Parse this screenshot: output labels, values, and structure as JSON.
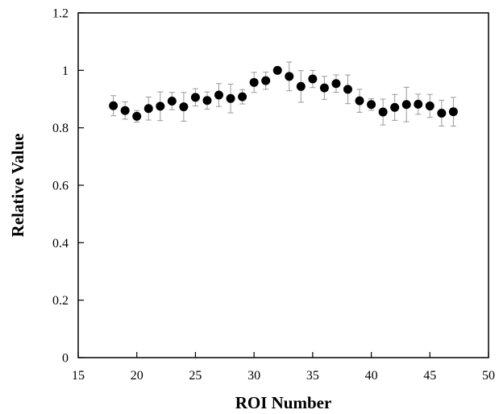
{
  "chart_data": {
    "type": "scatter",
    "title": "",
    "xlabel": "ROI Number",
    "ylabel": "Relative Value",
    "xlim": [
      15,
      50
    ],
    "ylim": [
      0,
      1.2
    ],
    "x_ticks": [
      15,
      20,
      25,
      30,
      35,
      40,
      45,
      50
    ],
    "y_ticks": [
      0,
      0.2,
      0.4,
      0.6,
      0.8,
      1,
      1.2
    ],
    "x_tick_labels": [
      "15",
      "20",
      "25",
      "30",
      "35",
      "40",
      "45",
      "50"
    ],
    "y_tick_labels": [
      "0",
      "0.2",
      "0.4",
      "0.6",
      "0.8",
      "1",
      "1.2"
    ],
    "grid": false,
    "legend": "none",
    "marker_color": "#000000",
    "error_bar_color": "#999999",
    "series": [
      {
        "x": [
          18,
          19,
          20,
          21,
          22,
          23,
          24,
          25,
          26,
          27,
          28,
          29,
          30,
          31,
          32,
          33,
          34,
          35,
          36,
          37,
          38,
          39,
          40,
          41,
          42,
          43,
          44,
          45,
          46,
          47
        ],
        "y": [
          0.877,
          0.86,
          0.84,
          0.867,
          0.875,
          0.893,
          0.873,
          0.906,
          0.895,
          0.914,
          0.902,
          0.908,
          0.958,
          0.964,
          1.0,
          0.979,
          0.944,
          0.97,
          0.939,
          0.954,
          0.934,
          0.894,
          0.881,
          0.855,
          0.871,
          0.881,
          0.882,
          0.876,
          0.851,
          0.856
        ],
        "error": [
          0.035,
          0.03,
          0.02,
          0.04,
          0.05,
          0.03,
          0.05,
          0.03,
          0.03,
          0.04,
          0.05,
          0.025,
          0.035,
          0.03,
          0.0,
          0.05,
          0.055,
          0.03,
          0.04,
          0.03,
          0.05,
          0.04,
          0.02,
          0.045,
          0.045,
          0.06,
          0.035,
          0.04,
          0.045,
          0.05
        ]
      }
    ]
  }
}
